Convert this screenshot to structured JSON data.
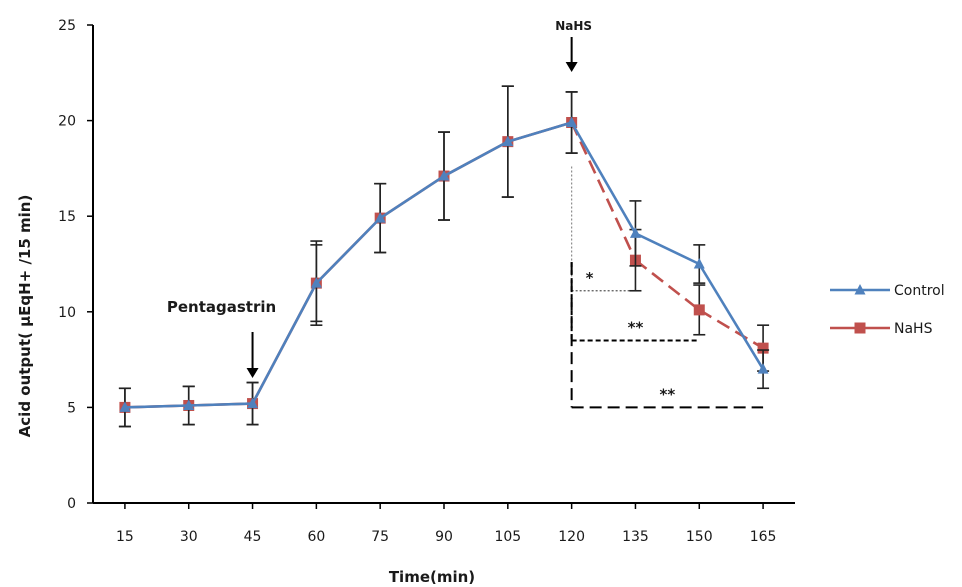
{
  "chart_data": {
    "type": "line",
    "title": "",
    "xlabel": "Time(min)",
    "ylabel": "Acid output( µEqH+ /15 min)",
    "x": [
      15,
      30,
      45,
      60,
      75,
      90,
      105,
      120,
      135,
      150,
      165
    ],
    "x_tick_labels": [
      "15",
      "30",
      "45",
      "60",
      "75",
      "90",
      "105",
      "120",
      "135",
      "150",
      "165"
    ],
    "ylim": [
      0,
      25
    ],
    "y_ticks": [
      0,
      5,
      10,
      15,
      20,
      25
    ],
    "y_tick_labels": [
      "0",
      "5",
      "10",
      "15",
      "20",
      "25"
    ],
    "grid": false,
    "legend_position": "right",
    "series": [
      {
        "name": "Control",
        "color": "#4f81bd",
        "marker": "triangle",
        "line_style": "solid",
        "values": [
          5.0,
          5.1,
          5.2,
          11.5,
          14.9,
          17.1,
          18.9,
          19.9,
          14.1,
          12.5,
          7.0
        ],
        "errors": [
          1.0,
          1.0,
          1.1,
          2.0,
          1.8,
          2.3,
          2.9,
          1.6,
          1.7,
          1.0,
          1.0
        ]
      },
      {
        "name": "NaHS",
        "color": "#c0504d",
        "marker": "square",
        "line_style": "dashed-after-120",
        "values": [
          5.0,
          5.1,
          5.2,
          11.5,
          14.9,
          17.1,
          18.9,
          19.9,
          12.7,
          10.1,
          8.1
        ],
        "errors": [
          1.0,
          1.0,
          1.1,
          2.2,
          1.8,
          2.3,
          2.9,
          1.6,
          1.6,
          1.3,
          1.2
        ]
      }
    ],
    "annotations": [
      {
        "text": "Pentagastrin",
        "x": 45,
        "arrow": true
      },
      {
        "text": "NaHS",
        "x": 120,
        "arrow": true
      }
    ],
    "significance_brackets": [
      {
        "label": "*",
        "x_from": 120,
        "x_to": 135,
        "y": 11.1
      },
      {
        "label": "**",
        "x_from": 120,
        "x_to": 150,
        "y": 8.5
      },
      {
        "label": "**",
        "x_from": 120,
        "x_to": 165,
        "y": 5.0
      }
    ]
  }
}
